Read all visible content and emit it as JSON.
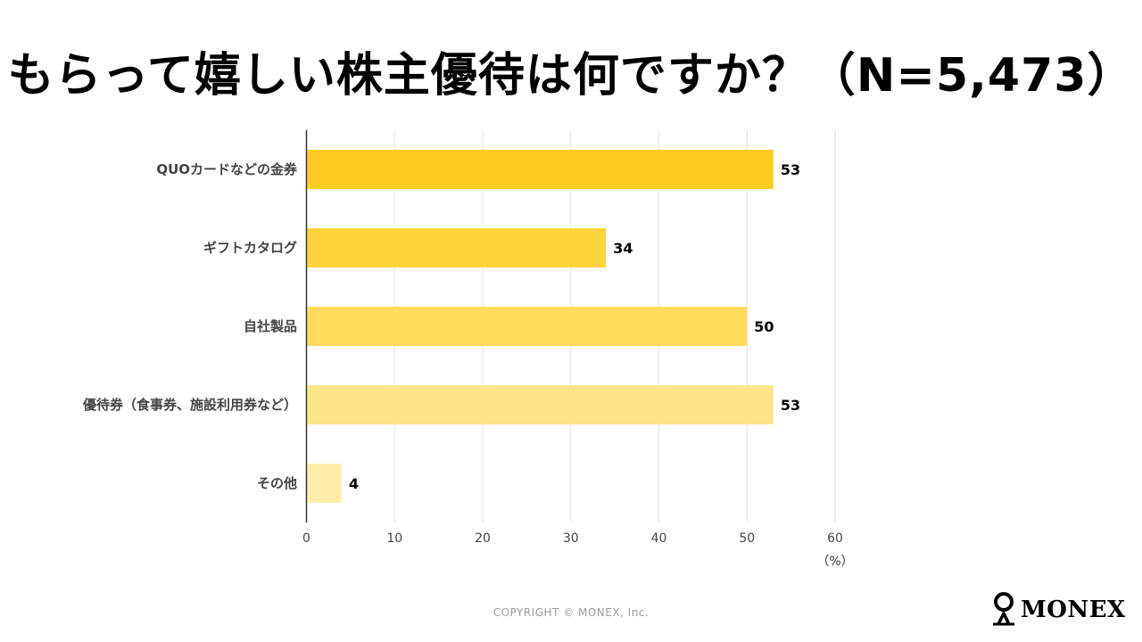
{
  "title": "もらって嬉しい株主優待は何ですか？（N=5,473）",
  "chart_data": {
    "type": "bar",
    "orientation": "horizontal",
    "categories": [
      "QUOカードなどの金券",
      "ギフトカタログ",
      "自社製品",
      "優待券（食事券、施設利用券など）",
      "その他"
    ],
    "values": [
      53,
      34,
      50,
      53,
      4
    ],
    "data_labels": [
      "53",
      "34",
      "50",
      "53",
      "4"
    ],
    "bar_colors": [
      "#FFCC22",
      "#FFD43B",
      "#FFDB5C",
      "#FFE488",
      "#FFEEAA"
    ],
    "xlim": [
      0,
      60
    ],
    "x_ticks": [
      0,
      10,
      20,
      30,
      40,
      50,
      60
    ],
    "x_unit": "（%）",
    "grid": true
  },
  "footer": {
    "copyright": "COPYRIGHT © MONEX, Inc."
  },
  "logo": {
    "text": "MONEX"
  }
}
